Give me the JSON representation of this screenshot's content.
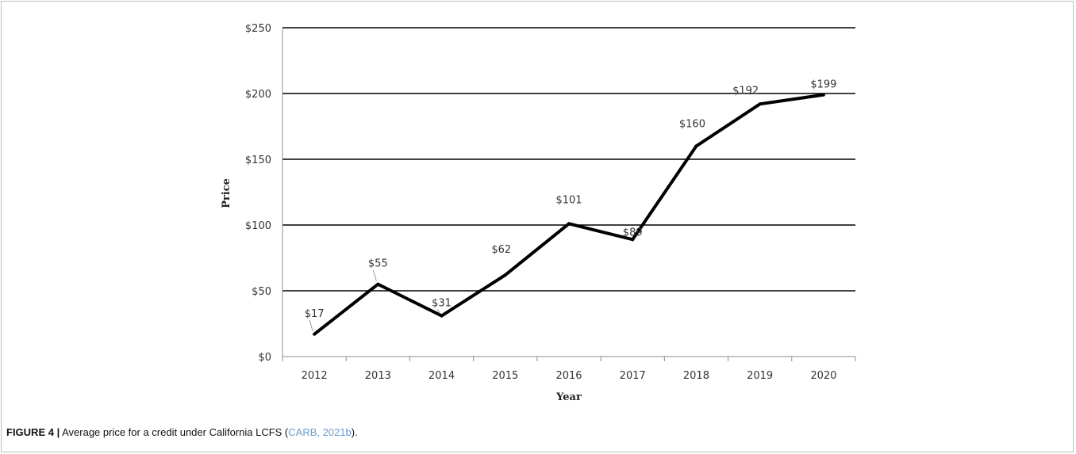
{
  "figure": {
    "label": "FIGURE 4 |",
    "caption_text": " Average price for a credit under California LCFS (",
    "citation": "CARB, 2021b",
    "caption_end": ")."
  },
  "chart_data": {
    "type": "line",
    "title": "",
    "xlabel": "Year",
    "ylabel": "Price",
    "categories": [
      "2012",
      "2013",
      "2014",
      "2015",
      "2016",
      "2017",
      "2018",
      "2019",
      "2020"
    ],
    "series": [
      {
        "values": [
          17,
          55,
          31,
          62,
          101,
          89,
          160,
          192,
          199
        ]
      }
    ],
    "data_labels": [
      "$17",
      "$55",
      "$31",
      "$62",
      "$101",
      "$89",
      "$160",
      "$192",
      "$199"
    ],
    "ylim": [
      0,
      250
    ],
    "yticks": [
      0,
      50,
      100,
      150,
      200,
      250
    ],
    "ytick_labels": [
      "$0",
      "$50",
      "$100",
      "$150",
      "$200",
      "$250"
    ],
    "grid": "horizontal",
    "colors": {
      "line": "#000000",
      "grid": "#000000",
      "axis": "#8c8c8c"
    }
  }
}
